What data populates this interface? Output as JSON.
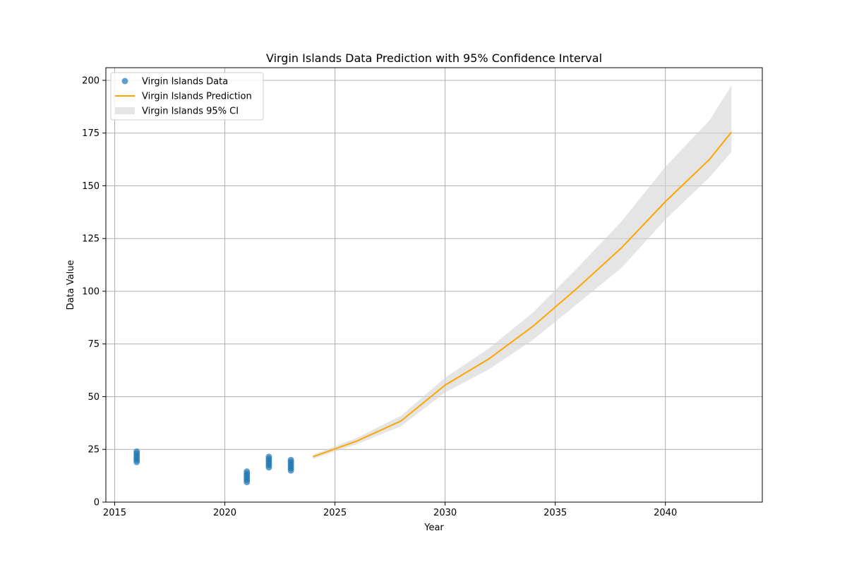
{
  "chart_data": {
    "type": "scatter",
    "title": "Virgin Islands Data Prediction with 95% Confidence Interval",
    "xlabel": "Year",
    "ylabel": "Data Value",
    "xlim": [
      2014.6,
      2044.4
    ],
    "ylim": [
      0,
      206
    ],
    "xticks": [
      2015,
      2020,
      2025,
      2030,
      2035,
      2040
    ],
    "yticks": [
      0,
      25,
      50,
      75,
      100,
      125,
      150,
      175,
      200
    ],
    "grid": true,
    "legend_position": "top-left",
    "legend": [
      {
        "label": "Virgin Islands Data",
        "kind": "marker",
        "color": "#1f77b4"
      },
      {
        "label": "Virgin Islands Prediction",
        "kind": "line",
        "color": "#ffa500"
      },
      {
        "label": "Virgin Islands 95% CI",
        "kind": "patch",
        "color": "#d3d3d3"
      }
    ],
    "series": [
      {
        "name": "Virgin Islands Data",
        "kind": "scatter",
        "color": "#1f77b4",
        "points": [
          {
            "x": 2016,
            "y": 19
          },
          {
            "x": 2016,
            "y": 20
          },
          {
            "x": 2016,
            "y": 21
          },
          {
            "x": 2016,
            "y": 22
          },
          {
            "x": 2016,
            "y": 23
          },
          {
            "x": 2016,
            "y": 24
          },
          {
            "x": 2021,
            "y": 9.5
          },
          {
            "x": 2021,
            "y": 10.5
          },
          {
            "x": 2021,
            "y": 11.5
          },
          {
            "x": 2021,
            "y": 12.5
          },
          {
            "x": 2021,
            "y": 13.5
          },
          {
            "x": 2021,
            "y": 14.5
          },
          {
            "x": 2022,
            "y": 16.5
          },
          {
            "x": 2022,
            "y": 17.5
          },
          {
            "x": 2022,
            "y": 18.5
          },
          {
            "x": 2022,
            "y": 19.5
          },
          {
            "x": 2022,
            "y": 20.5
          },
          {
            "x": 2022,
            "y": 21.5
          },
          {
            "x": 2023,
            "y": 15
          },
          {
            "x": 2023,
            "y": 16
          },
          {
            "x": 2023,
            "y": 17
          },
          {
            "x": 2023,
            "y": 18
          },
          {
            "x": 2023,
            "y": 19
          },
          {
            "x": 2023,
            "y": 20
          }
        ]
      },
      {
        "name": "Virgin Islands Prediction",
        "kind": "line",
        "color": "#ffa500",
        "points": [
          {
            "x": 2024,
            "y": 21.5
          },
          {
            "x": 2026,
            "y": 29
          },
          {
            "x": 2028,
            "y": 38.5
          },
          {
            "x": 2030,
            "y": 55.5
          },
          {
            "x": 2032,
            "y": 68
          },
          {
            "x": 2034,
            "y": 83.5
          },
          {
            "x": 2036,
            "y": 101.5
          },
          {
            "x": 2038,
            "y": 120.5
          },
          {
            "x": 2040,
            "y": 142.5
          },
          {
            "x": 2042,
            "y": 162.5
          },
          {
            "x": 2043,
            "y": 175.5
          }
        ]
      },
      {
        "name": "Virgin Islands 95% CI",
        "kind": "band",
        "color": "#d3d3d3",
        "points": [
          {
            "x": 2024,
            "lower": 20.5,
            "upper": 22.5
          },
          {
            "x": 2026,
            "lower": 27.5,
            "upper": 30.5
          },
          {
            "x": 2028,
            "lower": 36,
            "upper": 41
          },
          {
            "x": 2030,
            "lower": 52,
            "upper": 59
          },
          {
            "x": 2032,
            "lower": 63,
            "upper": 73
          },
          {
            "x": 2034,
            "lower": 77,
            "upper": 90
          },
          {
            "x": 2036,
            "lower": 94,
            "upper": 111
          },
          {
            "x": 2038,
            "lower": 111,
            "upper": 133
          },
          {
            "x": 2040,
            "lower": 134,
            "upper": 159
          },
          {
            "x": 2042,
            "lower": 154,
            "upper": 181
          },
          {
            "x": 2043,
            "lower": 166,
            "upper": 197.5
          }
        ]
      }
    ]
  }
}
